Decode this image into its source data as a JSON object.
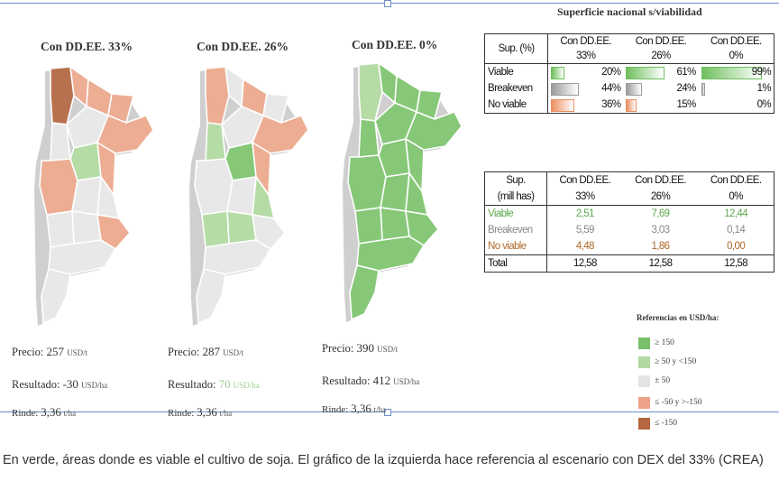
{
  "maps": [
    {
      "title": "Con DD.EE. 33%",
      "price_label": "Precio:",
      "price_value": "257",
      "price_unit": "USD/t",
      "result_label": "Resultado:",
      "result_value": "-30",
      "result_unit": "USD/ha",
      "yield_label": "Rinde:",
      "yield_value": "3,36",
      "yield_unit": "t/ha"
    },
    {
      "title": "Con DD.EE. 26%",
      "price_label": "Precio:",
      "price_value": "287",
      "price_unit": "USD/t",
      "result_label": "Resultado:",
      "result_value": "70",
      "result_unit": "USD/ha",
      "yield_label": "Rinde:",
      "yield_value": "3,36",
      "yield_unit": "t/ha"
    },
    {
      "title": "Con DD.EE. 0%",
      "price_label": "Precio:",
      "price_value": "390",
      "price_unit": "USD/t",
      "result_label": "Resultado:",
      "result_value": "412",
      "result_unit": "USD/ha",
      "yield_label": "Rinde:",
      "yield_value": "3,36",
      "yield_unit": "t/ha"
    }
  ],
  "map_fills": [
    [
      "#b8714f",
      "#ecad93",
      "#ecad93",
      "#ecad93",
      "#e8e8e8",
      "#e8e8e8",
      "#ecad93",
      "#b6dca6",
      "#ecad93",
      "#ecad93",
      "#e8e8e8",
      "#e8e8e8",
      "#e8e8e8",
      "#ecad93",
      "#e8e8e8",
      "#e8e8e8",
      "#e8e8e8"
    ],
    [
      "#ecad93",
      "#e8e8e8",
      "#ecad93",
      "#e8e8e8",
      "#b6dca6",
      "#e8e8e8",
      "#ecad93",
      "#86c878",
      "#ecad93",
      "#e8e8e8",
      "#e8e8e8",
      "#b6dca6",
      "#b6dca6",
      "#e8e8e8",
      "#b6dca6",
      "#e8e8e8",
      "#e8e8e8"
    ],
    [
      "#b6dca6",
      "#86c878",
      "#86c878",
      "#86c878",
      "#86c878",
      "#86c878",
      "#86c878",
      "#86c878",
      "#86c878",
      "#86c878",
      "#86c878",
      "#86c878",
      "#86c878",
      "#86c878",
      "#86c878",
      "#86c878",
      "#86c878"
    ]
  ],
  "national": {
    "title": "Superficie nacional s/viabilidad",
    "table1": {
      "header_label": "Sup. (%)",
      "col_heads": [
        "Con DD.EE.",
        "Con DD.EE.",
        "Con DD.EE."
      ],
      "col_pcts": [
        "33%",
        "26%",
        "0%"
      ],
      "rows": [
        {
          "label": "Viable",
          "values": [
            "20%",
            "61%",
            "99%"
          ],
          "fractions": [
            0.2,
            0.61,
            0.99
          ],
          "color": "#6fbf5e"
        },
        {
          "label": "Breakeven",
          "values": [
            "44%",
            "24%",
            "1%"
          ],
          "fractions": [
            0.44,
            0.24,
            0.01
          ],
          "color": "#9a9a9a"
        },
        {
          "label": "No viable",
          "values": [
            "36%",
            "15%",
            "0%"
          ],
          "fractions": [
            0.36,
            0.15,
            0.0
          ],
          "color": "#ec8f62"
        }
      ]
    },
    "table2": {
      "header_label1": "Sup.",
      "header_label2": "(mill has)",
      "col_heads": [
        "Con DD.EE.",
        "Con DD.EE.",
        "Con DD.EE."
      ],
      "col_pcts": [
        "33%",
        "26%",
        "0%"
      ],
      "rows": [
        {
          "label": "Viable",
          "values": [
            "2,51",
            "7,69",
            "12,44"
          ]
        },
        {
          "label": "Breakeven",
          "values": [
            "5,59",
            "3,03",
            "0,14"
          ]
        },
        {
          "label": "No viable",
          "values": [
            "4,48",
            "1,86",
            "0,00"
          ]
        }
      ],
      "total": {
        "label": "Total",
        "values": [
          "12,58",
          "12,58",
          "12,58"
        ]
      }
    }
  },
  "legend": {
    "title": "Referencias en USD/ha:",
    "items": [
      {
        "label": "≥ 150",
        "color": "#79bf6a"
      },
      {
        "label": "≥ 50 y <150",
        "color": "#b2d9a2"
      },
      {
        "label": "± 50",
        "color": "#e4e4e4"
      },
      {
        "label": "≤ -50 y >-150",
        "color": "#eda287"
      },
      {
        "label": "≤ -150",
        "color": "#b46640"
      }
    ]
  },
  "caption": "En verde, áreas donde es viable el cultivo de soja. El gráfico de la izquierda hace referencia al escenario con DEX del 33% (CREA)"
}
